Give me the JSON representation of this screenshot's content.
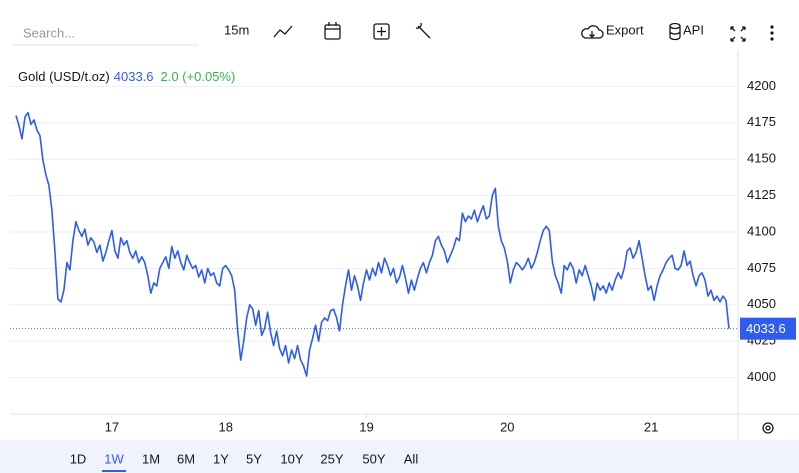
{
  "search_placeholder": "Search...",
  "toolbar": {
    "interval": "15m",
    "export": "Export",
    "api": "API"
  },
  "ranges": [
    "1D",
    "1W",
    "1M",
    "6M",
    "1Y",
    "5Y",
    "10Y",
    "25Y",
    "50Y",
    "All"
  ],
  "selected_range": "1W",
  "chart_data": {
    "type": "line",
    "change": "2.0 (+0.05%)",
    "series": [
      {
        "name": "Gold (USD/t.oz)",
        "color": "#2e5cf0",
        "values": [
          4180,
          4173,
          4164,
          4179,
          4182,
          4174,
          4177,
          4170,
          4166,
          4149,
          4139,
          4132,
          4115,
          4087,
          4054,
          4052,
          4060,
          4079,
          4074,
          4094,
          4107,
          4101,
          4097,
          4102,
          4091,
          4096,
          4093,
          4086,
          4091,
          4080,
          4086,
          4094,
          4101,
          4087,
          4082,
          4096,
          4091,
          4094,
          4086,
          4082,
          4087,
          4079,
          4083,
          4079,
          4070,
          4058,
          4065,
          4063,
          4075,
          4079,
          4083,
          4075,
          4090,
          4082,
          4087,
          4079,
          4074,
          4084,
          4079,
          4075,
          4077,
          4069,
          4074,
          4065,
          4075,
          4070,
          4072,
          4065,
          4063,
          4075,
          4077,
          4074,
          4070,
          4060,
          4032,
          4012,
          4025,
          4041,
          4050,
          4047,
          4036,
          4046,
          4029,
          4034,
          4045,
          4031,
          4022,
          4032,
          4020,
          4015,
          4022,
          4010,
          4019,
          4013,
          4022,
          4012,
          4008,
          4001,
          4019,
          4027,
          4036,
          4025,
          4038,
          4041,
          4039,
          4046,
          4047,
          4041,
          4032,
          4050,
          4063,
          4074,
          4060,
          4070,
          4063,
          4053,
          4065,
          4074,
          4067,
          4075,
          4070,
          4079,
          4072,
          4082,
          4077,
          4070,
          4075,
          4065,
          4069,
          4077,
          4068,
          4058,
          4067,
          4060,
          4068,
          4075,
          4079,
          4072,
          4079,
          4084,
          4094,
          4097,
          4091,
          4087,
          4079,
          4084,
          4089,
          4096,
          4094,
          4113,
          4107,
          4111,
          4109,
          4115,
          4107,
          4113,
          4118,
          4109,
          4111,
          4125,
          4130,
          4104,
          4094,
          4089,
          4080,
          4065,
          4074,
          4079,
          4077,
          4074,
          4077,
          4082,
          4075,
          4079,
          4086,
          4094,
          4101,
          4104,
          4101,
          4080,
          4070,
          4065,
          4058,
          4077,
          4074,
          4079,
          4075,
          4065,
          4074,
          4070,
          4077,
          4070,
          4063,
          4053,
          4065,
          4060,
          4063,
          4058,
          4065,
          4060,
          4067,
          4072,
          4068,
          4075,
          4087,
          4089,
          4082,
          4086,
          4094,
          4082,
          4070,
          4060,
          4063,
          4053,
          4063,
          4070,
          4074,
          4079,
          4082,
          4084,
          4075,
          4074,
          4077,
          4087,
          4077,
          4080,
          4070,
          4063,
          4070,
          4072,
          4067,
          4056,
          4060,
          4053,
          4056,
          4052,
          4056,
          4053,
          4033.6
        ]
      }
    ],
    "xlim": [
      -2,
      241
    ],
    "xticks": [
      {
        "value": 32,
        "label": "17"
      },
      {
        "value": 70,
        "label": "18"
      },
      {
        "value": 117,
        "label": "19"
      },
      {
        "value": 164,
        "label": "20"
      },
      {
        "value": 212,
        "label": "21"
      }
    ],
    "ylim": [
      3975,
      4225
    ],
    "yticks": [
      4000,
      4025,
      4050,
      4075,
      4100,
      4125,
      4150,
      4175,
      4200
    ],
    "grid": true,
    "change_color": "#3bb34a"
  }
}
